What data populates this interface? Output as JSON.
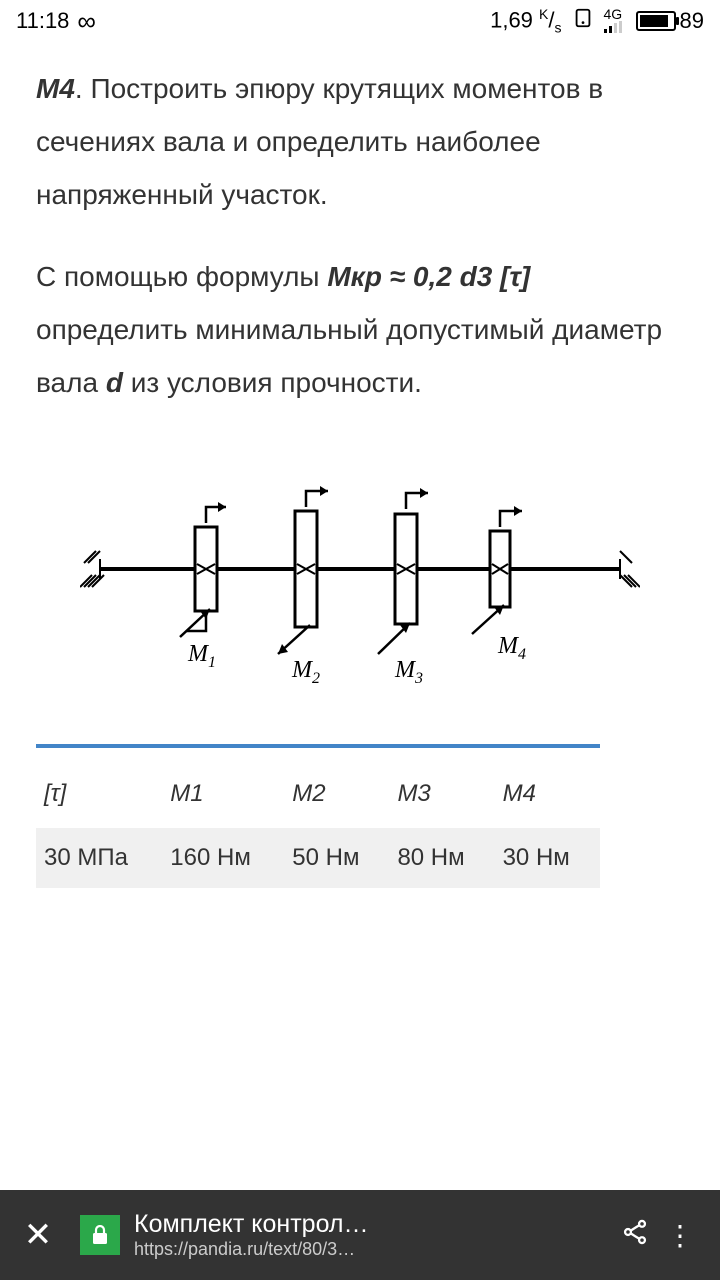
{
  "status": {
    "time": "11:18",
    "infinity": "∞",
    "data_rate": "1,69",
    "data_unit_top": "K",
    "data_unit_bot": "s",
    "network": "4G",
    "battery_pct": "89",
    "battery_fill_pct": 89
  },
  "content": {
    "p1_prefix": "М4",
    "p1_rest": ". Построить эпюру крутящих моментов в сечениях вала и определить наиболее напряженный участок.",
    "p2_a": "С помощью формулы ",
    "p2_formula": "Мкр ≈ 0,2 d3 [τ]",
    "p2_b": " определить минимальный допустимый диаметр вала ",
    "p2_d": "d",
    "p2_c": " из условия прочности."
  },
  "diagram": {
    "labels": {
      "m1": "M",
      "m2": "M",
      "m3": "M",
      "m4": "M"
    },
    "subs": {
      "s1": "1",
      "s2": "2",
      "s3": "3",
      "s4": "4"
    },
    "stroke": "#000000",
    "stroke_w": 3
  },
  "table": {
    "headers": [
      "[τ]",
      "M1",
      "M2",
      "M3",
      "M4"
    ],
    "row": [
      "30 МПа",
      "160 Нм",
      "50 Нм",
      "80 Нм",
      "30 Нм"
    ]
  },
  "bottombar": {
    "title": "Комплект контрол…",
    "url": "https://pandia.ru/text/80/3…"
  }
}
